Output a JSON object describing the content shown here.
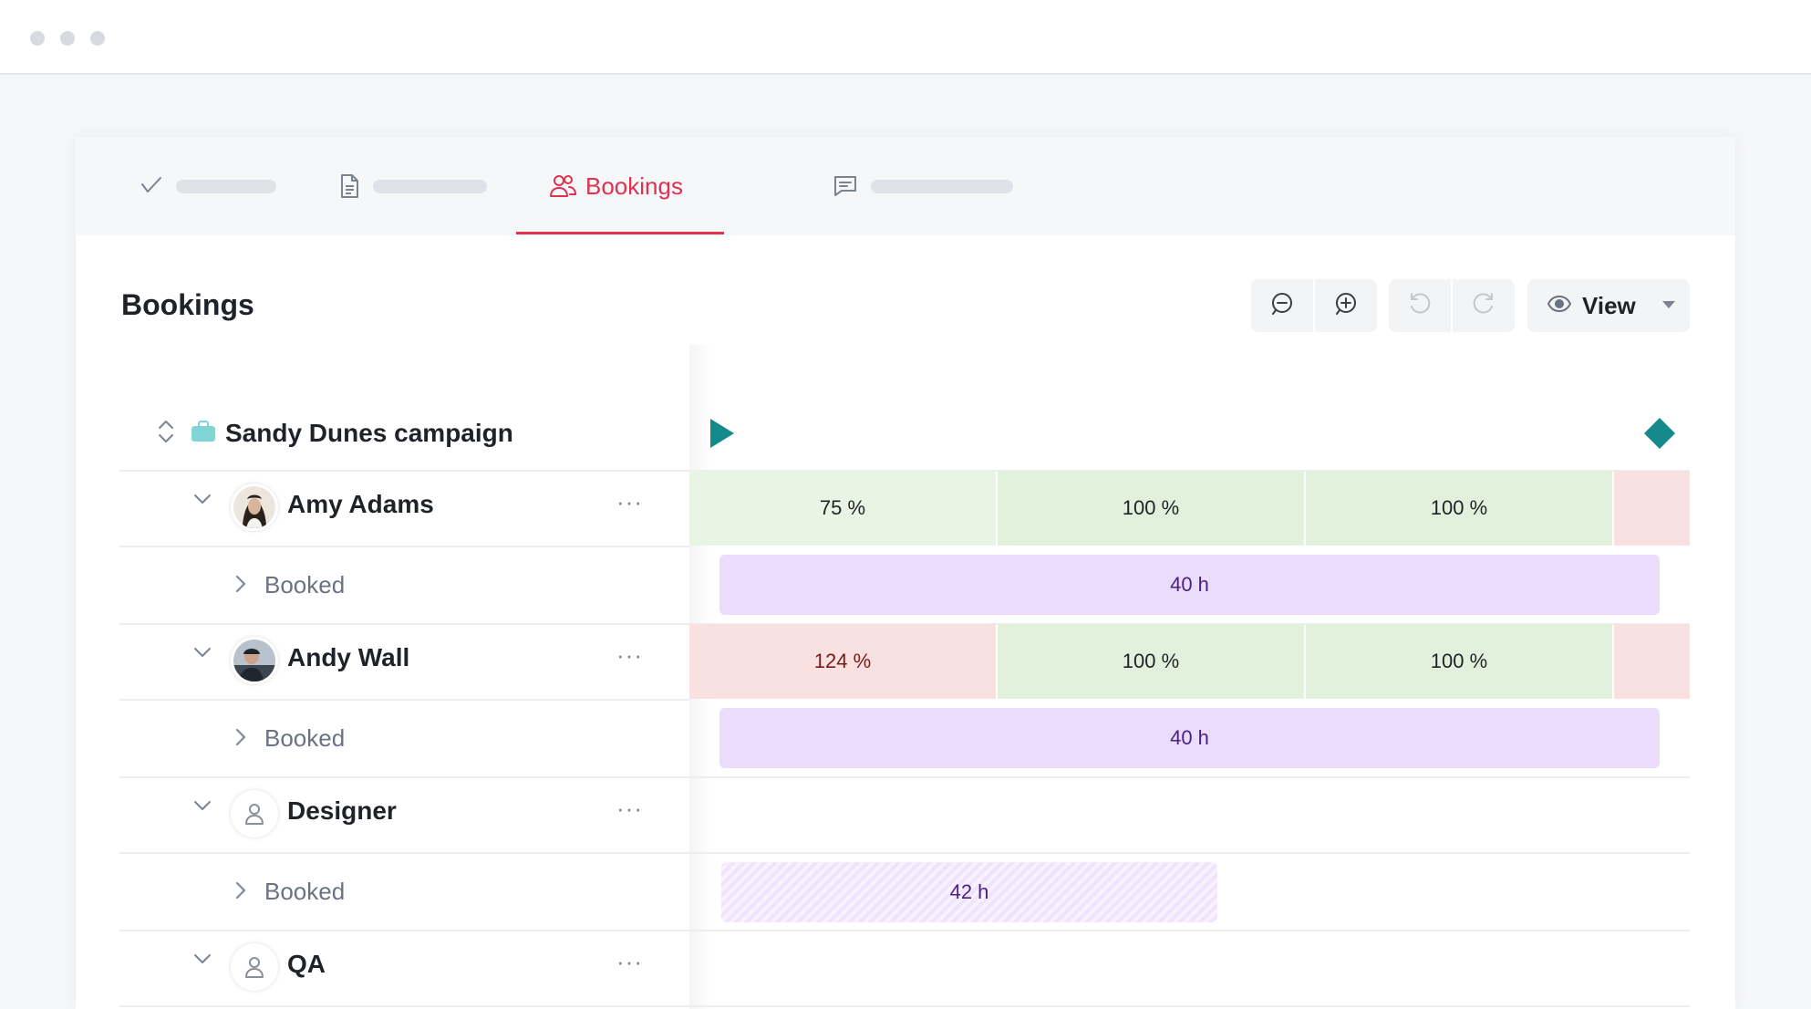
{
  "window": {
    "controls": [
      "close",
      "minimize",
      "maximize"
    ]
  },
  "tabs": [
    {
      "icon": "check-icon",
      "label": ""
    },
    {
      "icon": "document-icon",
      "label": ""
    },
    {
      "icon": "people-icon",
      "label": "Bookings",
      "active": true
    },
    {
      "icon": "chat-icon",
      "label": ""
    }
  ],
  "page": {
    "title": "Bookings"
  },
  "toolbar": {
    "zoom_out": "zoom-out-icon",
    "zoom_in": "zoom-in-icon",
    "undo": "undo-icon",
    "redo": "redo-icon",
    "view_label": "View"
  },
  "project": {
    "name": "Sandy Dunes campaign",
    "color": "#7fd6d4",
    "marker_color": "#148a8c"
  },
  "rows": [
    {
      "name": "Amy Adams",
      "booked_label": "Booked",
      "utilization": [
        "75 %",
        "100 %",
        "100 %",
        ""
      ],
      "booked_hours": "40 h"
    },
    {
      "name": "Andy Wall",
      "booked_label": "Booked",
      "utilization": [
        "124 %",
        "100 %",
        "100 %",
        ""
      ],
      "booked_hours": "40 h"
    },
    {
      "name": "Designer",
      "booked_label": "Booked",
      "booked_hours": "42 h"
    },
    {
      "name": "QA"
    }
  ],
  "colors": {
    "accent": "#e0314f",
    "under": "#e9f5e4",
    "full": "#e1f1dc",
    "over": "#f9e1e1",
    "booking": "#ebdcfb"
  }
}
